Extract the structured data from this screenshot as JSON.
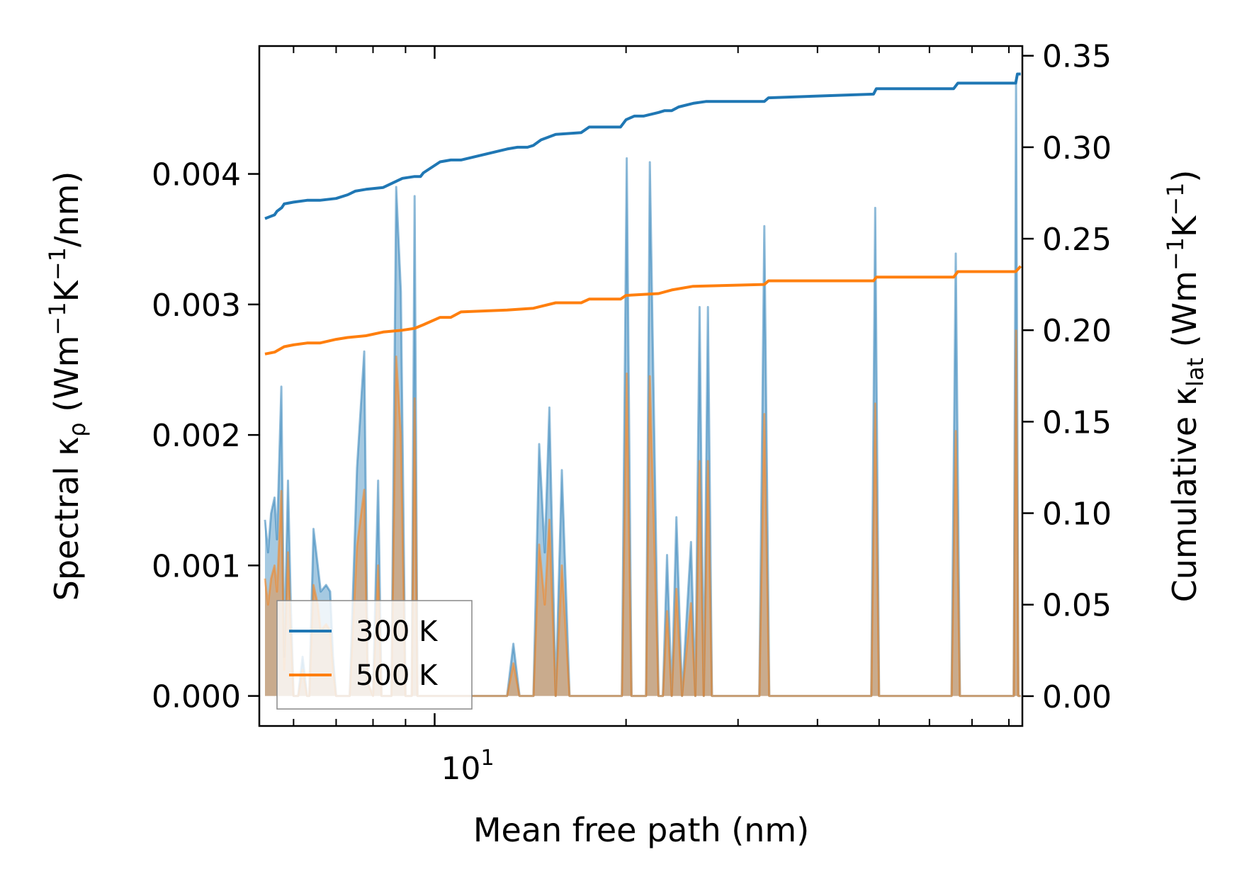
{
  "chart_data": {
    "type": "line",
    "xlabel": "Mean free path (nm)",
    "xscale": "log",
    "xlim": [
      5.3,
      84
    ],
    "x_tick_label": {
      "base": "10",
      "exponent": "1"
    },
    "ylabel_left": {
      "main": "Spectral κ",
      "sub": "ρ",
      "unit_open": " (Wm",
      "exp1": "−1",
      "mid": "K",
      "exp2": "−1",
      "unit_close": "/nm)"
    },
    "ylabel_right": {
      "main": "Cumulative κ",
      "sub": "lat",
      "unit_open": " (Wm",
      "exp1": "−1",
      "mid": "K",
      "exp2": "−1",
      "unit_close": ")"
    },
    "ylim_left": [
      -0.00023,
      0.00498
    ],
    "ylim_right": [
      -0.0163,
      0.3553
    ],
    "yticks_left": [
      "0.000",
      "0.001",
      "0.002",
      "0.003",
      "0.004"
    ],
    "ytick_values_left": [
      0,
      0.001,
      0.002,
      0.003,
      0.004
    ],
    "yticks_right": [
      "0.00",
      "0.05",
      "0.10",
      "0.15",
      "0.20",
      "0.25",
      "0.30",
      "0.35"
    ],
    "ytick_values_right": [
      0,
      0.05,
      0.1,
      0.15,
      0.2,
      0.25,
      0.3,
      0.35
    ],
    "legend": {
      "position": "lower-left",
      "entries": [
        "300 K",
        "500 K"
      ]
    },
    "colors": {
      "300 K": "#1f77b4",
      "500 K": "#ff7f0e"
    },
    "series": [
      {
        "name": "300 K",
        "kind": "cumulative",
        "axis": "right",
        "x": [
          5.41,
          5.6,
          5.65,
          5.75,
          5.8,
          6.0,
          6.3,
          6.6,
          7.0,
          7.3,
          7.5,
          7.8,
          8.3,
          8.9,
          9.3,
          9.5,
          9.6,
          10.2,
          10.6,
          11.0,
          13.0,
          13.5,
          14.0,
          14.3,
          14.7,
          15.5,
          17.0,
          17.5,
          19.6,
          20.0,
          20.6,
          21.3,
          22.5,
          23.0,
          23.6,
          24.2,
          25.5,
          26.7,
          33.0,
          33.5,
          49.0,
          49.5,
          65.5,
          66.5,
          82.0,
          82.5,
          83.5
        ],
        "y": [
          0.261,
          0.263,
          0.265,
          0.267,
          0.269,
          0.27,
          0.271,
          0.271,
          0.272,
          0.274,
          0.276,
          0.277,
          0.278,
          0.283,
          0.284,
          0.284,
          0.286,
          0.292,
          0.293,
          0.293,
          0.299,
          0.3,
          0.3,
          0.301,
          0.304,
          0.307,
          0.308,
          0.311,
          0.311,
          0.315,
          0.317,
          0.317,
          0.319,
          0.32,
          0.32,
          0.322,
          0.324,
          0.325,
          0.325,
          0.327,
          0.329,
          0.332,
          0.332,
          0.335,
          0.335,
          0.34,
          0.34
        ]
      },
      {
        "name": "500 K",
        "kind": "cumulative",
        "axis": "right",
        "x": [
          5.41,
          5.6,
          5.8,
          6.0,
          6.3,
          6.6,
          7.0,
          7.3,
          7.8,
          8.3,
          8.9,
          9.3,
          9.6,
          10.2,
          10.6,
          11.0,
          13.0,
          14.3,
          15.5,
          17.0,
          17.5,
          19.6,
          20.0,
          22.5,
          23.6,
          25.5,
          33.0,
          33.5,
          49.0,
          49.5,
          65.5,
          66.5,
          82.0,
          83.5
        ],
        "y": [
          0.187,
          0.188,
          0.191,
          0.192,
          0.193,
          0.193,
          0.195,
          0.196,
          0.197,
          0.199,
          0.2,
          0.201,
          0.203,
          0.207,
          0.207,
          0.21,
          0.211,
          0.212,
          0.215,
          0.215,
          0.217,
          0.217,
          0.219,
          0.22,
          0.222,
          0.224,
          0.225,
          0.227,
          0.227,
          0.229,
          0.229,
          0.232,
          0.232,
          0.235
        ]
      },
      {
        "name": "300 K",
        "kind": "spectral",
        "axis": "left",
        "x": [
          5.41,
          5.47,
          5.53,
          5.6,
          5.65,
          5.74,
          5.8,
          5.88,
          5.94,
          6.0,
          6.1,
          6.2,
          6.3,
          6.35,
          6.45,
          6.55,
          6.62,
          6.75,
          6.85,
          6.92,
          7.0,
          7.1,
          7.2,
          7.35,
          7.55,
          7.75,
          7.85,
          8.0,
          8.15,
          8.25,
          8.35,
          8.55,
          8.7,
          8.85,
          9.0,
          9.1,
          9.2,
          9.3,
          9.4,
          9.55,
          9.75,
          9.95,
          10.15,
          10.35,
          10.55,
          10.75,
          10.95,
          11.4,
          13.0,
          13.3,
          13.6,
          14.0,
          14.3,
          14.6,
          14.9,
          15.15,
          15.5,
          15.85,
          16.3,
          16.7,
          17.0,
          17.3,
          17.6,
          19.7,
          20.05,
          20.4,
          21.2,
          21.5,
          21.8,
          22.5,
          22.85,
          23.2,
          23.6,
          24.0,
          24.5,
          25.3,
          25.7,
          26.1,
          26.5,
          26.9,
          27.3,
          32.4,
          33.0,
          33.6,
          48.6,
          49.3,
          50.0,
          65.0,
          66.0,
          67.0,
          81.4,
          82.1,
          82.8,
          83.5
        ],
        "y": [
          0.00135,
          0.0011,
          0.0014,
          0.00152,
          0.0012,
          0.00237,
          0.0003,
          0.00165,
          0.0007,
          0.0,
          0.0,
          0.0003,
          0.0,
          0.0,
          0.00128,
          0.001,
          0.0008,
          0.00085,
          0.0008,
          0.0003,
          0.0,
          0.0,
          0.0,
          0.0,
          0.00175,
          0.00264,
          0.0001,
          0.0,
          0.00165,
          0.0,
          0.0,
          0.0,
          0.0039,
          0.0031,
          0.0,
          0.0,
          0.0,
          0.00383,
          0.0,
          0.0,
          0.0,
          0.0,
          0.0,
          0.0,
          0.0,
          0.0,
          0.0,
          0.0,
          0.0,
          0.0004,
          0.0,
          0.0,
          0.0,
          0.00193,
          0.0011,
          0.00221,
          0.0,
          0.00173,
          0.0,
          0.0,
          0.0,
          0.0,
          0.0,
          0.0,
          0.00412,
          0.0,
          0.0,
          0.0,
          0.00409,
          0.0,
          0.0,
          0.00108,
          0.0,
          0.00137,
          0.0,
          0.00118,
          0.0,
          0.00298,
          0.0,
          0.00298,
          0.0,
          0.0,
          0.0036,
          0.0,
          0.0,
          0.00374,
          0.0,
          0.0,
          0.00339,
          0.0,
          0.0,
          0.00472,
          0.0,
          0.0
        ]
      },
      {
        "name": "500 K",
        "kind": "spectral",
        "axis": "left",
        "x": [
          5.41,
          5.47,
          5.53,
          5.6,
          5.65,
          5.74,
          5.8,
          5.88,
          5.94,
          6.0,
          6.1,
          6.2,
          6.3,
          6.35,
          6.45,
          6.55,
          6.62,
          6.75,
          6.85,
          6.92,
          7.0,
          7.1,
          7.2,
          7.35,
          7.55,
          7.75,
          7.85,
          8.0,
          8.15,
          8.25,
          8.35,
          8.55,
          8.7,
          8.85,
          9.0,
          9.1,
          9.2,
          9.3,
          9.4,
          9.55,
          9.75,
          9.95,
          10.15,
          10.35,
          10.55,
          10.75,
          10.95,
          11.4,
          13.0,
          13.3,
          13.6,
          14.0,
          14.3,
          14.6,
          14.9,
          15.15,
          15.5,
          15.85,
          16.3,
          16.7,
          17.0,
          17.3,
          17.6,
          19.7,
          20.05,
          20.4,
          21.2,
          21.5,
          21.8,
          22.5,
          22.85,
          23.2,
          23.6,
          24.0,
          24.5,
          25.3,
          25.7,
          26.1,
          26.5,
          26.9,
          27.3,
          32.4,
          33.0,
          33.6,
          48.6,
          49.3,
          50.0,
          65.0,
          66.0,
          67.0,
          81.4,
          82.1,
          82.8,
          83.5
        ],
        "y": [
          0.0009,
          0.0007,
          0.0009,
          0.001,
          0.0008,
          0.00157,
          0.0002,
          0.0011,
          0.0005,
          0.0,
          0.0,
          0.0002,
          0.0,
          0.0,
          0.00085,
          0.0007,
          0.0005,
          0.00055,
          0.0005,
          0.0002,
          0.0,
          0.0,
          0.0,
          0.0,
          0.00115,
          0.00158,
          0.0001,
          0.0,
          0.001,
          0.0,
          0.0,
          0.0,
          0.0026,
          0.002,
          0.0,
          0.0,
          0.0,
          0.00228,
          0.0,
          0.0,
          0.0,
          0.0,
          0.0,
          0.0,
          0.0,
          0.0,
          0.0,
          0.0,
          0.0,
          0.00025,
          0.0,
          0.0,
          0.0,
          0.00116,
          0.0007,
          0.00135,
          0.0,
          0.001,
          0.0,
          0.0,
          0.0,
          0.0,
          0.0,
          0.0,
          0.00247,
          0.0,
          0.0,
          0.0,
          0.00245,
          0.0,
          0.0,
          0.00065,
          0.0,
          0.00082,
          0.0,
          0.00071,
          0.0,
          0.0018,
          0.0,
          0.0018,
          0.0,
          0.0,
          0.00216,
          0.0,
          0.0,
          0.00224,
          0.0,
          0.0,
          0.00203,
          0.0,
          0.0,
          0.0028,
          0.0,
          0.0
        ]
      }
    ]
  }
}
